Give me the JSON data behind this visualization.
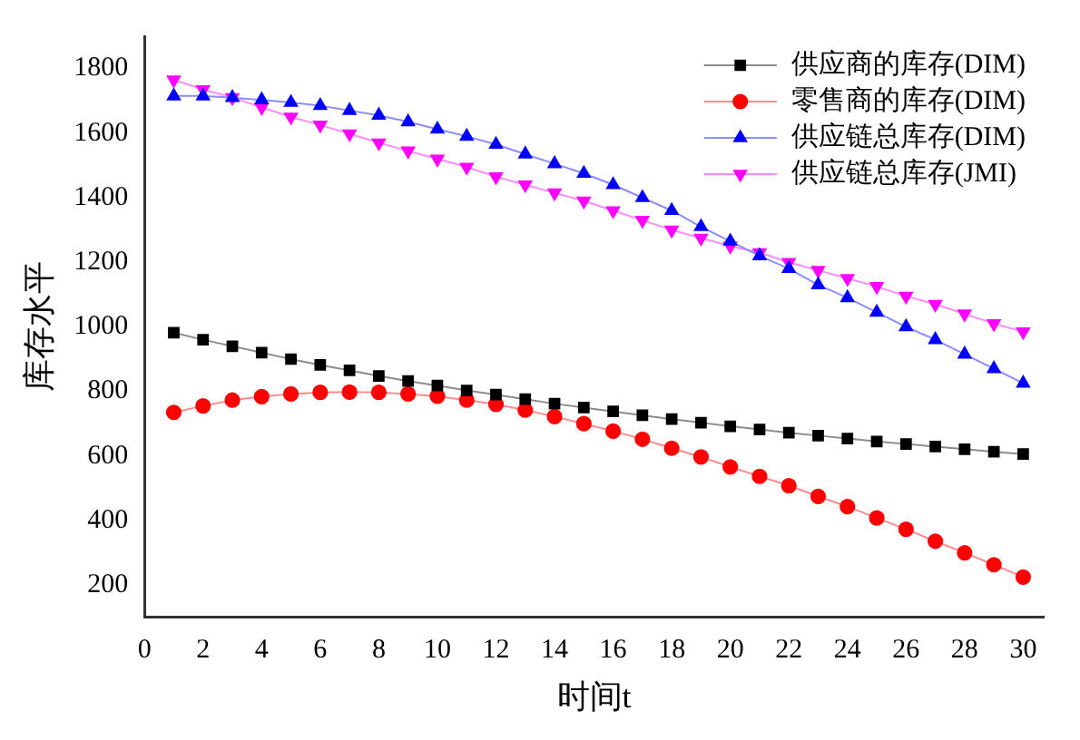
{
  "chart_data": {
    "type": "line",
    "xlabel": "时间t",
    "ylabel": "库存水平",
    "x": [
      1,
      2,
      3,
      4,
      5,
      6,
      7,
      8,
      9,
      10,
      11,
      12,
      13,
      14,
      15,
      16,
      17,
      18,
      19,
      20,
      21,
      22,
      23,
      24,
      25,
      26,
      27,
      28,
      29,
      30
    ],
    "xlim": [
      0,
      30.7
    ],
    "xticks": [
      0,
      2,
      4,
      6,
      8,
      10,
      12,
      14,
      16,
      18,
      20,
      22,
      24,
      26,
      28,
      30
    ],
    "ylim": [
      100,
      1900
    ],
    "yticks": [
      200,
      400,
      600,
      800,
      1000,
      1200,
      1400,
      1600,
      1800
    ],
    "grid": false,
    "legend": "top right",
    "line_style": "solid",
    "series": [
      {
        "name": "供应商的库存(DIM)",
        "color": "#000000",
        "marker": "square",
        "values": [
          982,
          960,
          940,
          920,
          900,
          882,
          865,
          848,
          832,
          818,
          803,
          790,
          776,
          762,
          750,
          738,
          726,
          714,
          703,
          692,
          682,
          672,
          663,
          654,
          645,
          637,
          629,
          621,
          613,
          606
        ]
      },
      {
        "name": "零售商的库存(DIM)",
        "color": "#ff0000",
        "marker": "circle",
        "values": [
          735,
          755,
          773,
          784,
          792,
          797,
          798,
          797,
          792,
          785,
          773,
          760,
          742,
          722,
          700,
          677,
          652,
          624,
          597,
          566,
          537,
          508,
          475,
          443,
          408,
          373,
          336,
          300,
          263,
          225
        ]
      },
      {
        "name": "供应链总库存(DIM)",
        "color": "#0000ff",
        "marker": "triangle",
        "values": [
          1715,
          1715,
          1710,
          1703,
          1695,
          1685,
          1670,
          1655,
          1635,
          1612,
          1590,
          1565,
          1535,
          1505,
          1475,
          1440,
          1400,
          1360,
          1310,
          1265,
          1220,
          1180,
          1130,
          1090,
          1045,
          1000,
          960,
          915,
          870,
          825
        ]
      },
      {
        "name": "供应链总库存(JMI)",
        "color": "#ff00ff",
        "marker": "triangle_down",
        "values": [
          1765,
          1735,
          1710,
          1680,
          1650,
          1625,
          1598,
          1570,
          1545,
          1520,
          1495,
          1465,
          1440,
          1415,
          1390,
          1360,
          1330,
          1300,
          1275,
          1250,
          1230,
          1200,
          1175,
          1150,
          1125,
          1095,
          1070,
          1040,
          1010,
          985
        ]
      }
    ]
  }
}
